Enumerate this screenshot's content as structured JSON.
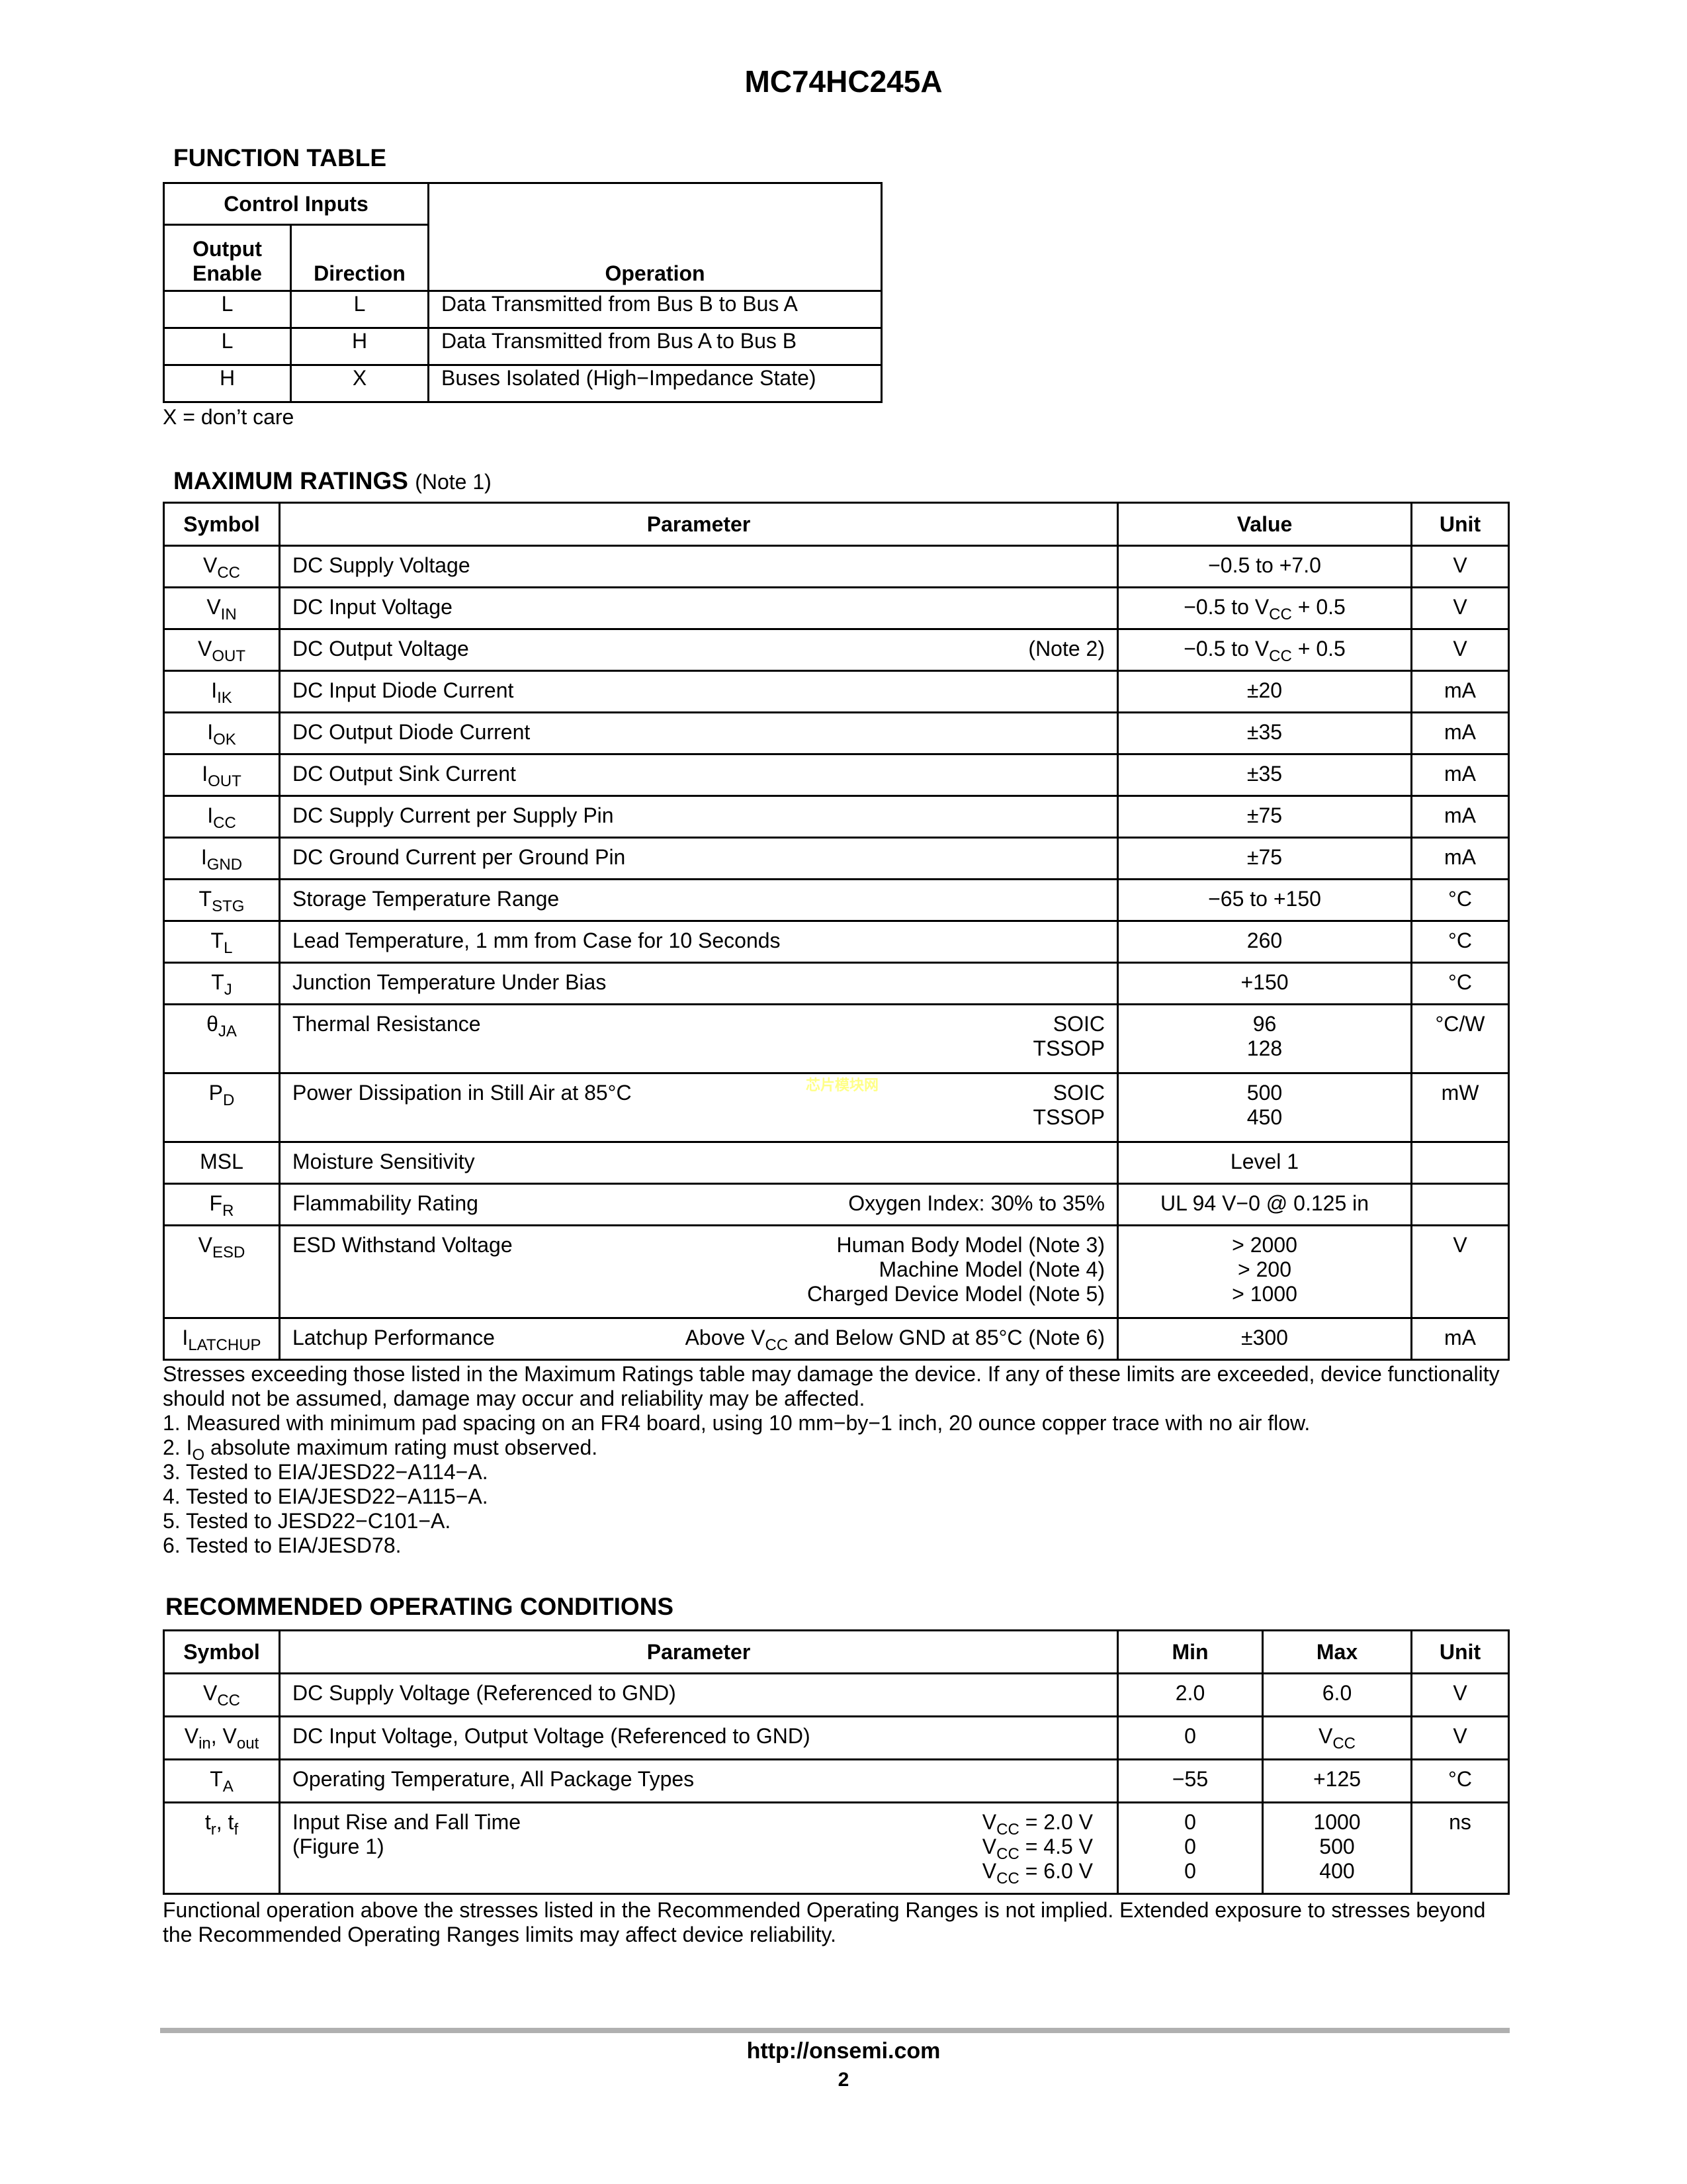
{
  "header": {
    "title": "MC74HC245A"
  },
  "function_table": {
    "title": "FUNCTION TABLE",
    "group_header": "Control Inputs",
    "col_oe": "Output Enable",
    "col_dir": "Direction",
    "col_op": "Operation",
    "rows": [
      {
        "oe": "L",
        "dir": "L",
        "op": "Data Transmitted from Bus B to Bus A"
      },
      {
        "oe": "L",
        "dir": "H",
        "op": "Data Transmitted from Bus A to Bus B"
      },
      {
        "oe": "H",
        "dir": "X",
        "op": "Buses Isolated (High−Impedance State)"
      }
    ],
    "footnote": "X = don’t care"
  },
  "max_ratings": {
    "title": "MAXIMUM RATINGS",
    "note": "(Note 1)",
    "headers": [
      "Symbol",
      "Parameter",
      "Value",
      "Unit"
    ],
    "rows": [
      {
        "sym": "V",
        "sub": "CC",
        "param": "DC Supply Voltage",
        "cond": "",
        "value": "−0.5 to +7.0",
        "unit": "V"
      },
      {
        "sym": "V",
        "sub": "IN",
        "param": "DC Input Voltage",
        "cond": "",
        "value": "−0.5 to V",
        "vsub": "CC",
        "vtail": " + 0.5",
        "unit": "V"
      },
      {
        "sym": "V",
        "sub": "OUT",
        "param": "DC Output Voltage",
        "cond": "(Note 2)",
        "value": "−0.5 to V",
        "vsub": "CC",
        "vtail": " + 0.5",
        "unit": "V"
      },
      {
        "sym": "I",
        "sub": "IK",
        "param": "DC Input Diode Current",
        "cond": "",
        "value": "±20",
        "unit": "mA"
      },
      {
        "sym": "I",
        "sub": "OK",
        "param": "DC Output Diode Current",
        "cond": "",
        "value": "±35",
        "unit": "mA"
      },
      {
        "sym": "I",
        "sub": "OUT",
        "param": "DC Output Sink Current",
        "cond": "",
        "value": "±35",
        "unit": "mA"
      },
      {
        "sym": "I",
        "sub": "CC",
        "param": "DC Supply Current per Supply Pin",
        "cond": "",
        "value": "±75",
        "unit": "mA"
      },
      {
        "sym": "I",
        "sub": "GND",
        "param": "DC Ground Current per Ground Pin",
        "cond": "",
        "value": "±75",
        "unit": "mA"
      },
      {
        "sym": "T",
        "sub": "STG",
        "param": "Storage Temperature Range",
        "cond": "",
        "value": "−65 to +150",
        "unit": "°C"
      },
      {
        "sym": "T",
        "sub": "L",
        "param": "Lead Temperature, 1 mm from Case for 10 Seconds",
        "cond": "",
        "value": "260",
        "unit": "°C"
      },
      {
        "sym": "T",
        "sub": "J",
        "param": "Junction Temperature Under Bias",
        "cond": "",
        "value": "+150",
        "unit": "°C"
      },
      {
        "sym": "θ",
        "sub": "JA",
        "param": "Thermal Resistance",
        "cond": "SOIC\nTSSOP",
        "value": "96\n128",
        "unit": "°C/W"
      },
      {
        "sym": "P",
        "sub": "D",
        "param": "Power Dissipation in Still Air at 85°C",
        "cond": "SOIC\nTSSOP",
        "value": "500\n450",
        "unit": "mW"
      },
      {
        "sym": "MSL",
        "sub": "",
        "param": "Moisture Sensitivity",
        "cond": "",
        "value": "Level 1",
        "unit": ""
      },
      {
        "sym": "F",
        "sub": "R",
        "param": "Flammability Rating",
        "cond": "Oxygen Index: 30% to 35%",
        "value": "UL 94 V−0 @ 0.125 in",
        "unit": ""
      },
      {
        "sym": "V",
        "sub": "ESD",
        "param": "ESD Withstand Voltage",
        "cond": "Human Body Model (Note 3)\nMachine Model (Note 4)\nCharged Device Model (Note 5)",
        "value": "> 2000\n> 200\n> 1000",
        "unit": "V"
      },
      {
        "sym": "I",
        "sub": "LATCHUP",
        "param": "Latchup Performance",
        "cond": "Above V",
        "csub": "CC",
        "ctail": " and Below GND at 85°C (Note 6)",
        "value": "±300",
        "unit": "mA"
      }
    ],
    "stress_text": "Stresses exceeding those listed in the Maximum Ratings table may damage the device. If any of these limits are exceeded, device functionality should not be assumed, damage may occur and reliability may be affected.",
    "notes": [
      "1.  Measured with minimum pad spacing on an FR4 board, using 10 mm−by−1 inch, 20 ounce copper trace with no air flow.",
      "2.  I",
      "3.  Tested to EIA/JESD22−A114−A.",
      "4.  Tested to EIA/JESD22−A115−A.",
      "5.  Tested to JESD22−C101−A.",
      "6.  Tested to EIA/JESD78."
    ],
    "note2_sub": "O",
    "note2_tail": " absolute maximum rating must observed."
  },
  "watermark": "芯片模块网",
  "rec_op": {
    "title": "RECOMMENDED OPERATING CONDITIONS",
    "headers": [
      "Symbol",
      "Parameter",
      "Min",
      "Max",
      "Unit"
    ],
    "rows": [
      {
        "sym": "V",
        "sub": "CC",
        "param": "DC Supply Voltage (Referenced to GND)",
        "min": "2.0",
        "max": "6.0",
        "unit": "V"
      },
      {
        "sym": "V",
        "sub": "in",
        "sym2": ", V",
        "sub2": "out",
        "param": "DC Input Voltage, Output Voltage (Referenced to GND)",
        "min": "0",
        "max": "V",
        "maxsub": "CC",
        "unit": "V"
      },
      {
        "sym": "T",
        "sub": "A",
        "param": "Operating Temperature, All Package Types",
        "min": "−55",
        "max": "+125",
        "unit": "°C"
      },
      {
        "sym": "t",
        "sub": "r",
        "sym2": ", t",
        "sub2": "f",
        "param": "Input Rise and Fall Time\n(Figure 1)",
        "conds": [
          {
            "v": "V",
            "s": "CC",
            "t": " = 2.0 V"
          },
          {
            "v": "V",
            "s": "CC",
            "t": " = 4.5 V"
          },
          {
            "v": "V",
            "s": "CC",
            "t": " = 6.0 V"
          }
        ],
        "min": "0\n0\n0",
        "max": "1000\n500\n400",
        "unit": "ns"
      }
    ],
    "footer_text": "Functional operation above the stresses listed in the Recommended Operating Ranges is not implied. Extended exposure to stresses beyond the Recommended Operating Ranges limits may affect device reliability."
  },
  "footer": {
    "url": "http://onsemi.com",
    "page": "2"
  }
}
